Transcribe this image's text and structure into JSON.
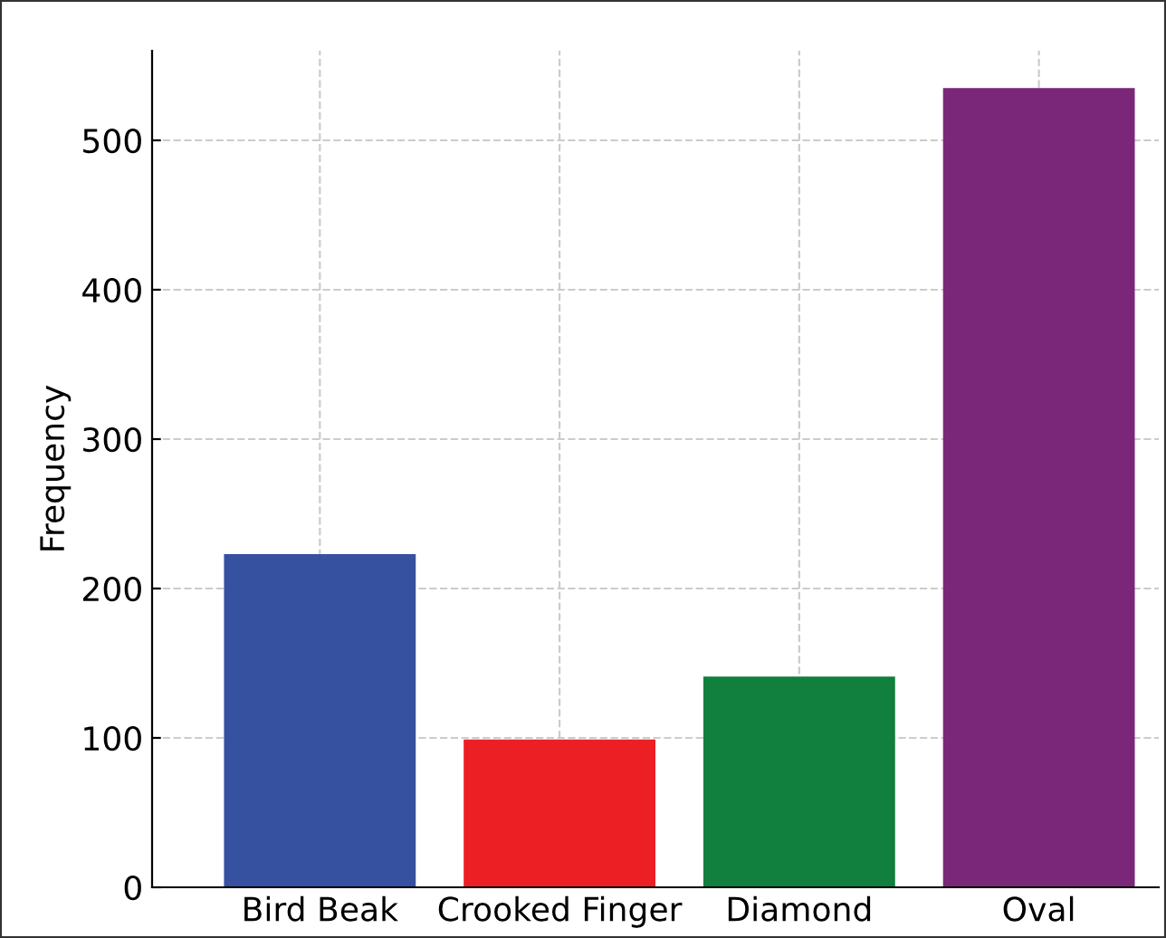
{
  "chart_data": {
    "type": "bar",
    "ylabel": "Frequency",
    "categories": [
      "Bird Beak",
      "Crooked Finger",
      "Diamond",
      "Oval"
    ],
    "values": [
      223,
      99,
      141,
      535
    ],
    "colors": [
      "#3651a0",
      "#ec1f24",
      "#117f3e",
      "#7b2779"
    ],
    "ylim": [
      0,
      560
    ],
    "yticks": [
      0,
      100,
      200,
      300,
      400,
      500
    ],
    "grid": true
  }
}
